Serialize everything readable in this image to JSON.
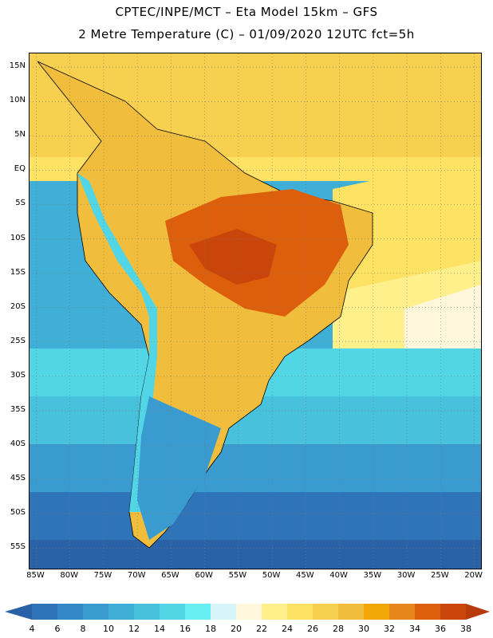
{
  "header": {
    "title_line1": "CPTEC/INPE/MCT –  Eta Model 15km – GFS",
    "title_line2": "2 Metre Temperature (C) – 01/09/2020 12UTC fct=5h"
  },
  "map": {
    "type": "temperature-field",
    "variable": "2 Metre Temperature",
    "units": "C",
    "extent": {
      "lon_min": -86,
      "lon_max": -19,
      "lat_min": -58,
      "lat_max": 17
    },
    "lat_ticks": [
      {
        "value": 15,
        "label": "15N"
      },
      {
        "value": 10,
        "label": "10N"
      },
      {
        "value": 5,
        "label": "5N"
      },
      {
        "value": 0,
        "label": "EQ"
      },
      {
        "value": -5,
        "label": "5S"
      },
      {
        "value": -10,
        "label": "10S"
      },
      {
        "value": -15,
        "label": "15S"
      },
      {
        "value": -20,
        "label": "20S"
      },
      {
        "value": -25,
        "label": "25S"
      },
      {
        "value": -30,
        "label": "30S"
      },
      {
        "value": -35,
        "label": "35S"
      },
      {
        "value": -40,
        "label": "40S"
      },
      {
        "value": -45,
        "label": "45S"
      },
      {
        "value": -50,
        "label": "50S"
      },
      {
        "value": -55,
        "label": "55S"
      }
    ],
    "lon_ticks": [
      {
        "value": -85,
        "label": "85W"
      },
      {
        "value": -80,
        "label": "80W"
      },
      {
        "value": -75,
        "label": "75W"
      },
      {
        "value": -70,
        "label": "70W"
      },
      {
        "value": -65,
        "label": "65W"
      },
      {
        "value": -60,
        "label": "60W"
      },
      {
        "value": -55,
        "label": "55W"
      },
      {
        "value": -50,
        "label": "50W"
      },
      {
        "value": -45,
        "label": "45W"
      },
      {
        "value": -40,
        "label": "40W"
      },
      {
        "value": -35,
        "label": "35W"
      },
      {
        "value": -30,
        "label": "30W"
      },
      {
        "value": -25,
        "label": "25W"
      },
      {
        "value": -20,
        "label": "20W"
      }
    ]
  },
  "colorbar": {
    "levels": [
      "4",
      "6",
      "8",
      "10",
      "12",
      "14",
      "16",
      "18",
      "20",
      "22",
      "24",
      "26",
      "28",
      "30",
      "32",
      "34",
      "36",
      "38"
    ],
    "colors": [
      "#2a62a8",
      "#2f74b8",
      "#3487c6",
      "#3a9bd0",
      "#40afd8",
      "#48c2dc",
      "#52d6e6",
      "#66eef2",
      "#d6f4fa",
      "#fff7dc",
      "#fff08c",
      "#fde264",
      "#f8d050",
      "#f0be3c",
      "#f2a608",
      "#e7861b",
      "#dd5f0c",
      "#c9450a",
      "#b83a0c"
    ]
  }
}
